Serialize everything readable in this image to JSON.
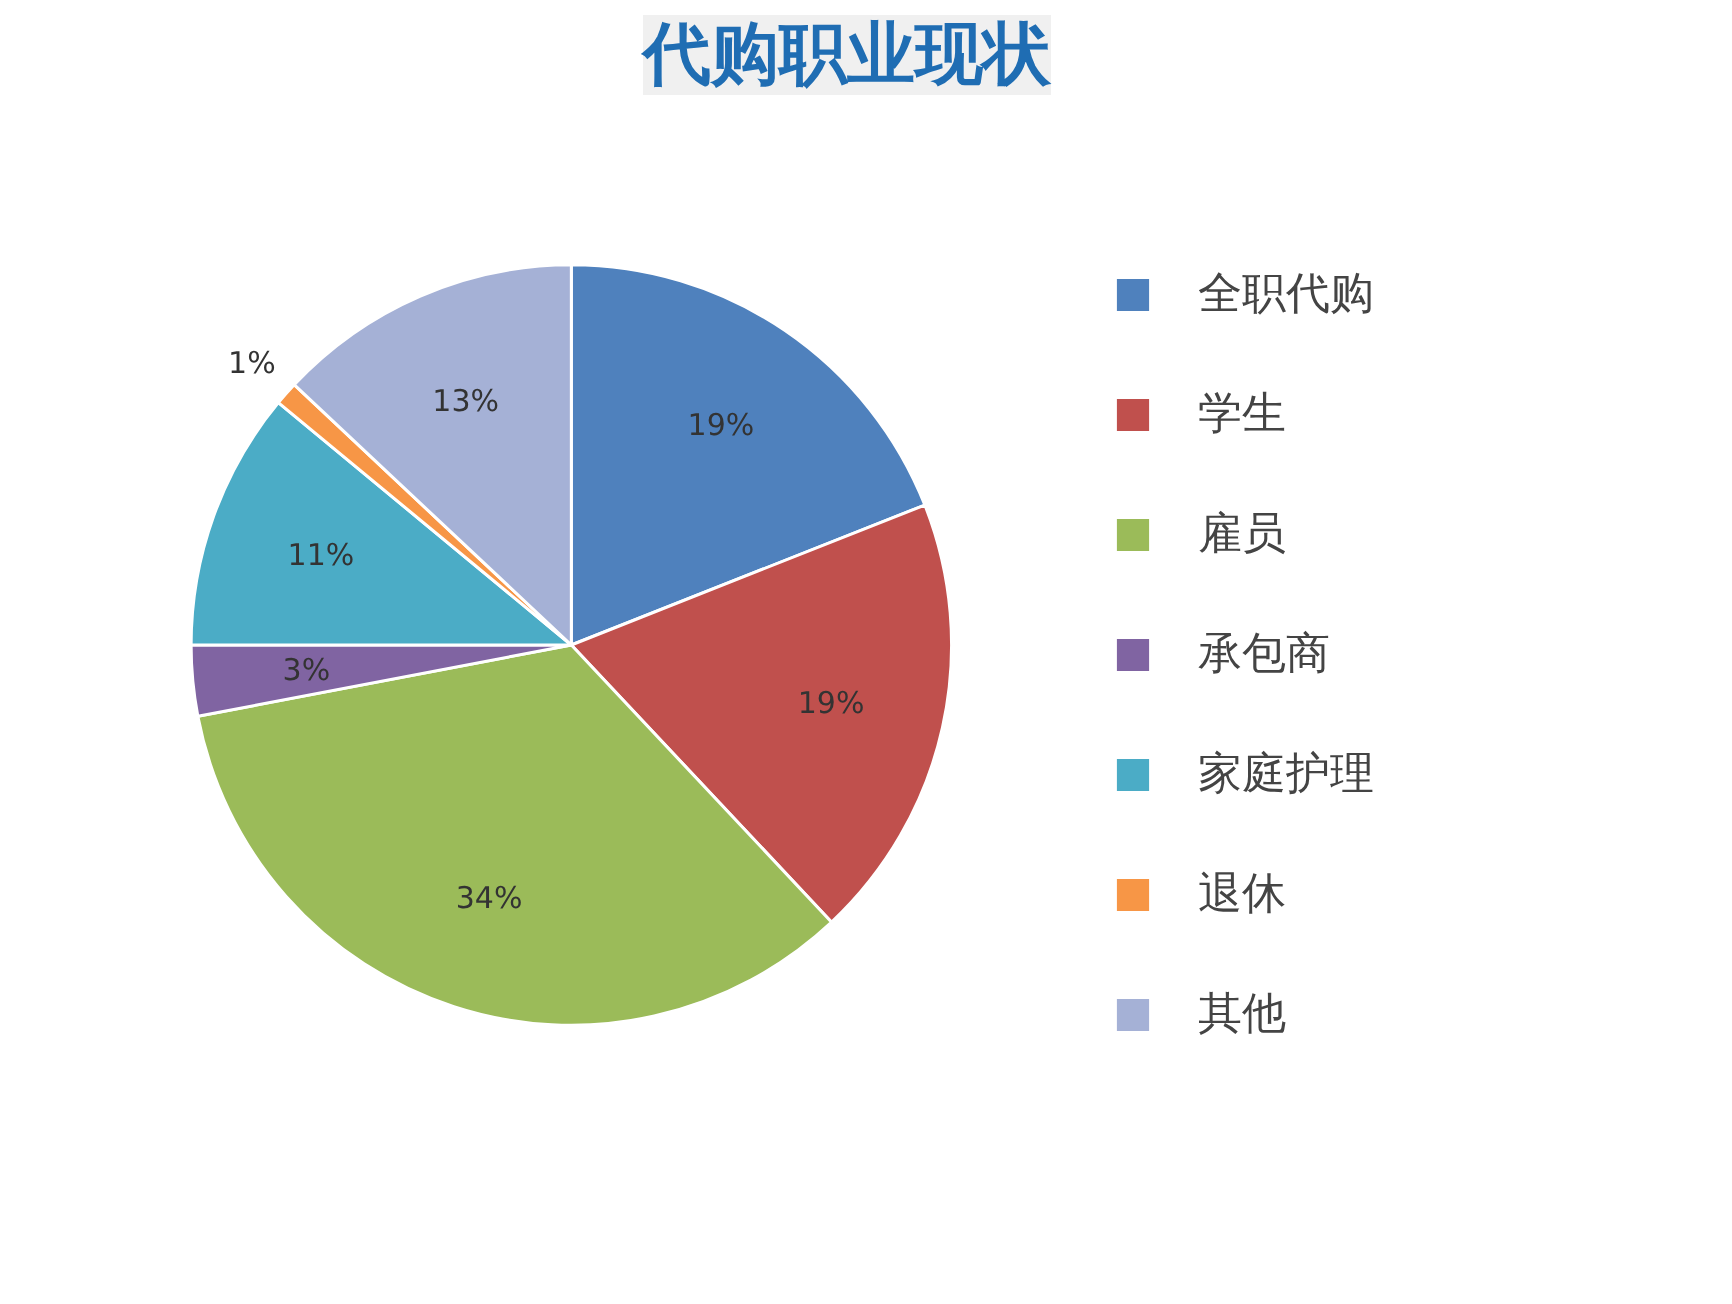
{
  "chart_data": {
    "type": "pie",
    "title": "代购职业现状",
    "categories": [
      "全职代购",
      "学生",
      "雇员",
      "承包商",
      "家庭护理",
      "退休",
      "其他"
    ],
    "values": [
      19,
      19,
      34,
      3,
      11,
      1,
      13
    ],
    "colors": [
      "#4f81bd",
      "#c0504d",
      "#9bbb59",
      "#8064a2",
      "#4bacc6",
      "#f79646",
      "#a5b1d6"
    ],
    "value_labels": [
      "19%",
      "19%",
      "34%",
      "3%",
      "11%",
      "1%",
      "13%"
    ],
    "legend": "right"
  }
}
